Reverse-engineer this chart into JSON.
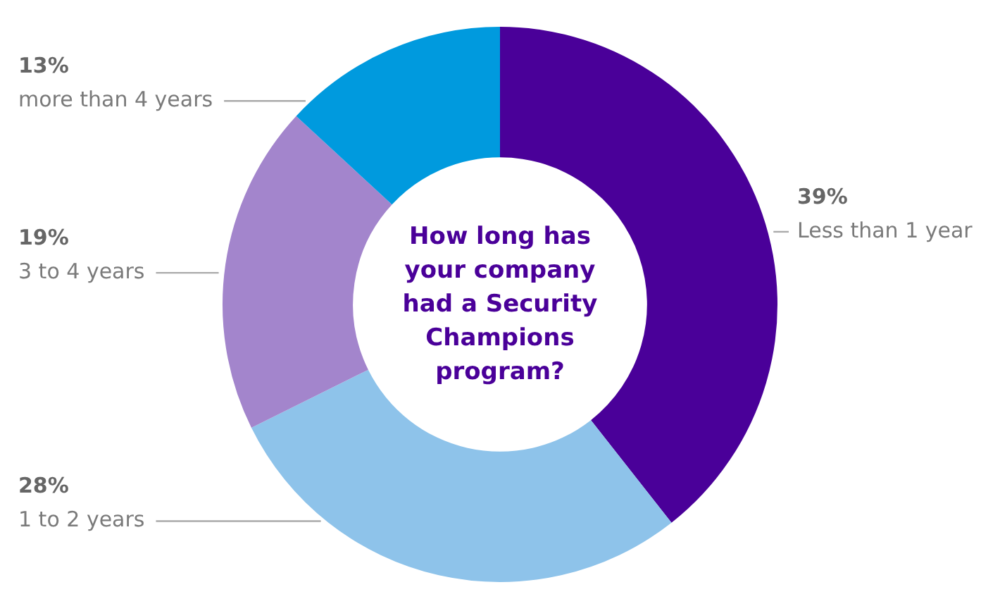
{
  "chart_data": {
    "type": "donut",
    "title": "How long has your company had a Security Champions program?",
    "categories": [
      "Less than 1 year",
      "1 to 2 years",
      "3 to 4 years",
      "more than 4 years"
    ],
    "values": [
      39,
      28,
      19,
      13
    ],
    "value_labels": [
      "39%",
      "28%",
      "19%",
      "13%"
    ],
    "colors": [
      "#4a0099",
      "#8ec3ea",
      "#a385cc",
      "#009ade"
    ],
    "legend": false
  }
}
